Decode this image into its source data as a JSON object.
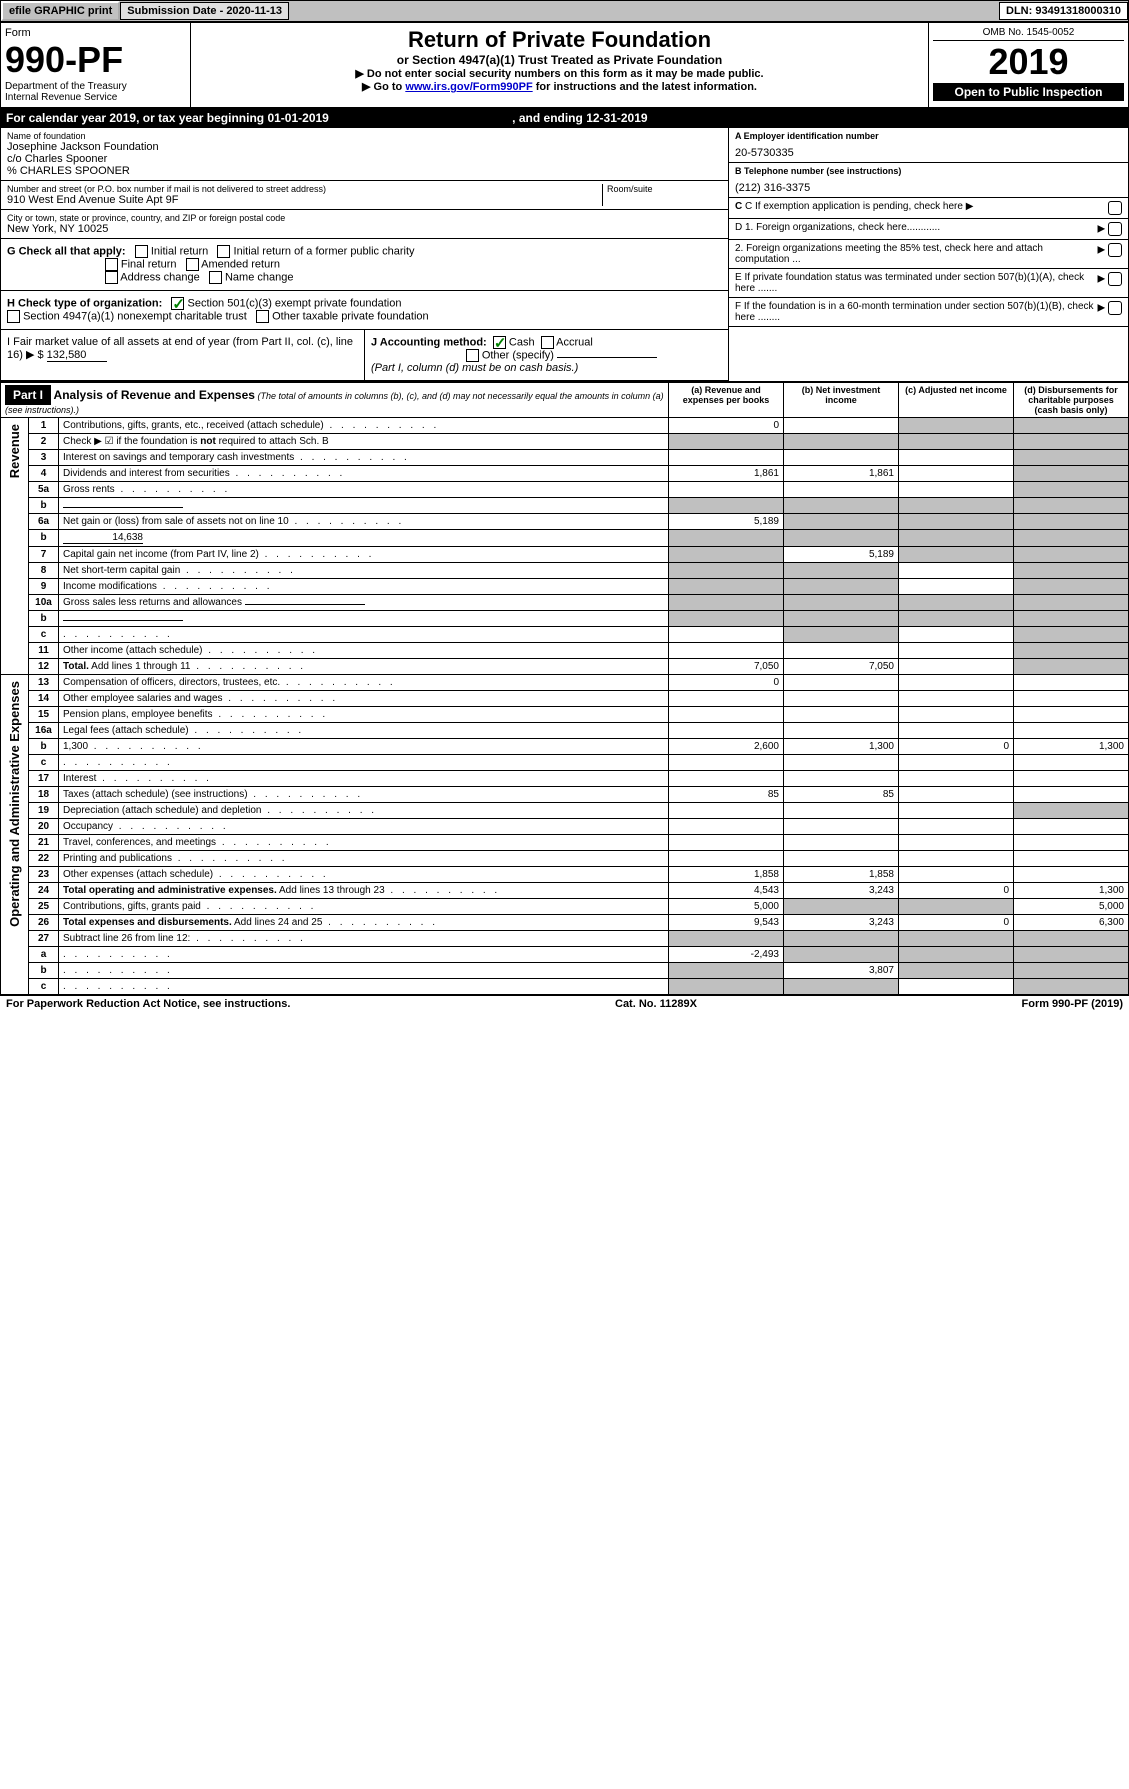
{
  "topbar": {
    "efile": "efile GRAPHIC print",
    "submission_label": "Submission Date - 2020-11-13",
    "dln": "DLN: 93491318000310"
  },
  "header": {
    "form_label": "Form",
    "form_number": "990-PF",
    "dept": "Department of the Treasury",
    "irs": "Internal Revenue Service",
    "title": "Return of Private Foundation",
    "subtitle": "or Section 4947(a)(1) Trust Treated as Private Foundation",
    "note1": "▶ Do not enter social security numbers on this form as it may be made public.",
    "note2_prefix": "▶ Go to ",
    "note2_link": "www.irs.gov/Form990PF",
    "note2_suffix": " for instructions and the latest information.",
    "omb": "OMB No. 1545-0052",
    "year": "2019",
    "open_public": "Open to Public Inspection"
  },
  "calendar": {
    "text_prefix": "For calendar year 2019, or tax year beginning ",
    "begin": "01-01-2019",
    "text_mid": " , and ending ",
    "end": "12-31-2019"
  },
  "entity": {
    "name_label": "Name of foundation",
    "name1": "Josephine Jackson Foundation",
    "name2": "c/o Charles Spooner",
    "name3": "% CHARLES SPOONER",
    "addr_label": "Number and street (or P.O. box number if mail is not delivered to street address)",
    "room_label": "Room/suite",
    "addr": "910 West End Avenue Suite Apt 9F",
    "city_label": "City or town, state or province, country, and ZIP or foreign postal code",
    "city": "New York, NY  10025",
    "ein_label": "A Employer identification number",
    "ein": "20-5730335",
    "phone_label": "B Telephone number (see instructions)",
    "phone": "(212) 316-3375"
  },
  "checks": {
    "c_label": "C If exemption application is pending, check here",
    "g_label": "G Check all that apply:",
    "g_initial": "Initial return",
    "g_initial_former": "Initial return of a former public charity",
    "g_final": "Final return",
    "g_amended": "Amended return",
    "g_address": "Address change",
    "g_name": "Name change",
    "h_label": "H Check type of organization:",
    "h_501c3": "Section 501(c)(3) exempt private foundation",
    "h_4947": "Section 4947(a)(1) nonexempt charitable trust",
    "h_other": "Other taxable private foundation",
    "d1": "D 1. Foreign organizations, check here............",
    "d2": "2. Foreign organizations meeting the 85% test, check here and attach computation ...",
    "e": "E  If private foundation status was terminated under section 507(b)(1)(A), check here .......",
    "f": "F  If the foundation is in a 60-month termination under section 507(b)(1)(B), check here ........",
    "i_label": "I Fair market value of all assets at end of year (from Part II, col. (c), line 16) ▶ $",
    "i_value": "132,580",
    "j_label": "J Accounting method:",
    "j_cash": "Cash",
    "j_accrual": "Accrual",
    "j_other": "Other (specify)",
    "j_note": "(Part I, column (d) must be on cash basis.)"
  },
  "part1": {
    "label": "Part I",
    "title": "Analysis of Revenue and Expenses",
    "title_note": "(The total of amounts in columns (b), (c), and (d) may not necessarily equal the amounts in column (a) (see instructions).)",
    "col_a": "(a)   Revenue and expenses per books",
    "col_b": "(b)  Net investment income",
    "col_c": "(c)  Adjusted net income",
    "col_d": "(d)  Disbursements for charitable purposes (cash basis only)",
    "revenue_label": "Revenue",
    "expenses_label": "Operating and Administrative Expenses"
  },
  "rows": [
    {
      "n": "1",
      "d": "",
      "a": "0",
      "b": "",
      "c": "",
      "shade_b": false,
      "shade_c": true,
      "shade_d": true
    },
    {
      "n": "2",
      "d": "",
      "a": "",
      "b": "",
      "c": "",
      "nodots": true,
      "shade_a": true,
      "shade_b": true,
      "shade_c": true,
      "shade_d": true
    },
    {
      "n": "3",
      "d": "",
      "a": "",
      "b": "",
      "c": "",
      "shade_d": true
    },
    {
      "n": "4",
      "d": "",
      "a": "1,861",
      "b": "1,861",
      "c": "",
      "shade_d": true
    },
    {
      "n": "5a",
      "d": "",
      "a": "",
      "b": "",
      "c": "",
      "shade_d": true
    },
    {
      "n": "b",
      "d": "",
      "a": "",
      "b": "",
      "c": "",
      "inline_field": true,
      "shade_a": true,
      "shade_b": true,
      "shade_c": true,
      "shade_d": true
    },
    {
      "n": "6a",
      "d": "",
      "a": "5,189",
      "b": "",
      "c": "",
      "shade_b": true,
      "shade_c": true,
      "shade_d": true
    },
    {
      "n": "b",
      "d": "",
      "a": "",
      "b": "",
      "c": "",
      "inline_val": "14,638",
      "shade_a": true,
      "shade_b": true,
      "shade_c": true,
      "shade_d": true
    },
    {
      "n": "7",
      "d": "",
      "a": "",
      "b": "5,189",
      "c": "",
      "shade_a": true,
      "shade_c": true,
      "shade_d": true
    },
    {
      "n": "8",
      "d": "",
      "a": "",
      "b": "",
      "c": "",
      "shade_a": true,
      "shade_b": true,
      "shade_d": true
    },
    {
      "n": "9",
      "d": "",
      "a": "",
      "b": "",
      "c": "",
      "shade_a": true,
      "shade_b": true,
      "shade_d": true
    },
    {
      "n": "10a",
      "d": "",
      "a": "",
      "b": "",
      "c": "",
      "inline_field": true,
      "shade_a": true,
      "shade_b": true,
      "shade_c": true,
      "shade_d": true
    },
    {
      "n": "b",
      "d": "",
      "a": "",
      "b": "",
      "c": "",
      "inline_field": true,
      "shade_a": true,
      "shade_b": true,
      "shade_c": true,
      "shade_d": true
    },
    {
      "n": "c",
      "d": "",
      "a": "",
      "b": "",
      "c": "",
      "shade_b": true,
      "shade_d": true
    },
    {
      "n": "11",
      "d": "",
      "a": "",
      "b": "",
      "c": "",
      "shade_d": true
    },
    {
      "n": "12",
      "d": "",
      "a": "7,050",
      "b": "7,050",
      "c": "",
      "bold": true,
      "shade_d": true
    },
    {
      "n": "13",
      "d": "",
      "a": "0",
      "b": "",
      "c": "",
      "sec": "exp"
    },
    {
      "n": "14",
      "d": "",
      "a": "",
      "b": "",
      "c": "",
      "sec": "exp"
    },
    {
      "n": "15",
      "d": "",
      "a": "",
      "b": "",
      "c": "",
      "sec": "exp"
    },
    {
      "n": "16a",
      "d": "",
      "a": "",
      "b": "",
      "c": "",
      "sec": "exp"
    },
    {
      "n": "b",
      "d": "1,300",
      "a": "2,600",
      "b": "1,300",
      "c": "0",
      "sec": "exp"
    },
    {
      "n": "c",
      "d": "",
      "a": "",
      "b": "",
      "c": "",
      "sec": "exp"
    },
    {
      "n": "17",
      "d": "",
      "a": "",
      "b": "",
      "c": "",
      "sec": "exp"
    },
    {
      "n": "18",
      "d": "",
      "a": "85",
      "b": "85",
      "c": "",
      "sec": "exp"
    },
    {
      "n": "19",
      "d": "",
      "a": "",
      "b": "",
      "c": "",
      "sec": "exp",
      "shade_d": true
    },
    {
      "n": "20",
      "d": "",
      "a": "",
      "b": "",
      "c": "",
      "sec": "exp"
    },
    {
      "n": "21",
      "d": "",
      "a": "",
      "b": "",
      "c": "",
      "sec": "exp"
    },
    {
      "n": "22",
      "d": "",
      "a": "",
      "b": "",
      "c": "",
      "sec": "exp"
    },
    {
      "n": "23",
      "d": "",
      "a": "1,858",
      "b": "1,858",
      "c": "",
      "sec": "exp"
    },
    {
      "n": "24",
      "d": "1,300",
      "a": "4,543",
      "b": "3,243",
      "c": "0",
      "sec": "exp",
      "bold": true
    },
    {
      "n": "25",
      "d": "5,000",
      "a": "5,000",
      "b": "",
      "c": "",
      "sec": "exp",
      "shade_b": true,
      "shade_c": true
    },
    {
      "n": "26",
      "d": "6,300",
      "a": "9,543",
      "b": "3,243",
      "c": "0",
      "sec": "exp",
      "bold": true
    },
    {
      "n": "27",
      "d": "",
      "a": "",
      "b": "",
      "c": "",
      "sec": "exp",
      "shade_a": true,
      "shade_b": true,
      "shade_c": true,
      "shade_d": true
    },
    {
      "n": "a",
      "d": "",
      "a": "-2,493",
      "b": "",
      "c": "",
      "sec": "exp",
      "bold": true,
      "shade_b": true,
      "shade_c": true,
      "shade_d": true
    },
    {
      "n": "b",
      "d": "",
      "a": "",
      "b": "3,807",
      "c": "",
      "sec": "exp",
      "bold": true,
      "shade_a": true,
      "shade_c": true,
      "shade_d": true
    },
    {
      "n": "c",
      "d": "",
      "a": "",
      "b": "",
      "c": "",
      "sec": "exp",
      "bold": true,
      "shade_a": true,
      "shade_b": true,
      "shade_d": true
    }
  ],
  "footer": {
    "left": "For Paperwork Reduction Act Notice, see instructions.",
    "center": "Cat. No. 11289X",
    "right": "Form 990-PF (2019)"
  }
}
